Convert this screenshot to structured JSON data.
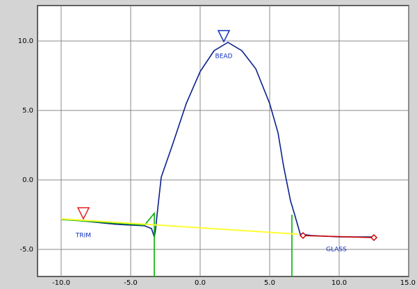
{
  "chart_data": {
    "type": "line",
    "xlim": [
      -11.7,
      15.0
    ],
    "ylim": [
      -6.95,
      12.55
    ],
    "xticks": [
      {
        "value": -10,
        "label": "-10.0"
      },
      {
        "value": -5,
        "label": "-5.0"
      },
      {
        "value": 0,
        "label": "0.0"
      },
      {
        "value": 5,
        "label": "5.0"
      },
      {
        "value": 10,
        "label": "10.0"
      },
      {
        "value": 15,
        "label": "15.0"
      }
    ],
    "yticks": [
      {
        "value": -5,
        "label": "-5.0"
      },
      {
        "value": 0,
        "label": "0.0"
      },
      {
        "value": 5,
        "label": "5.0"
      },
      {
        "value": 10,
        "label": "10.0"
      }
    ],
    "grid": true,
    "series": [
      {
        "color": "#0b1f8a",
        "x": [
          -10,
          -8,
          -6,
          -4,
          -3.5,
          -3.3,
          -3.2,
          -3.1,
          -2.8,
          -2,
          -1,
          0,
          1,
          2,
          3,
          4,
          5,
          5.6,
          6,
          6.5,
          6.8,
          7.2,
          8,
          10,
          12.5
        ],
        "values": [
          -2.8,
          -3.0,
          -3.2,
          -3.3,
          -3.5,
          -4.1,
          -3.5,
          -2.5,
          0.2,
          2.5,
          5.5,
          7.8,
          9.3,
          9.9,
          9.3,
          8.0,
          5.5,
          3.4,
          1.0,
          -1.5,
          -2.5,
          -3.9,
          -4.0,
          -4.1,
          -4.1
        ]
      },
      {
        "color": "#00b000",
        "x": [
          -10,
          -4,
          -3.3,
          -3.3,
          null,
          6.6,
          6.6
        ],
        "values": [
          -2.85,
          -3.25,
          -2.4,
          -7,
          null,
          -2.5,
          -7
        ]
      },
      {
        "color": "#ffff33",
        "x": [
          -10,
          7
        ],
        "values": [
          -2.8,
          -3.9
        ]
      },
      {
        "color": "#cc0000",
        "x": [
          7.2,
          12.5
        ],
        "values": [
          -4.0,
          -4.15
        ]
      }
    ],
    "markers": [
      {
        "shape": "triangle",
        "color": "#e02020",
        "x": -8.4,
        "y": -2.4
      },
      {
        "shape": "triangle",
        "color": "#1030c0",
        "x": 1.7,
        "y": 10.35
      },
      {
        "shape": "diamond",
        "color": "#cc0000",
        "x": 7.4,
        "y": -4.0
      },
      {
        "shape": "diamond",
        "color": "#cc0000",
        "x": 12.5,
        "y": -4.15
      }
    ],
    "annotations": [
      {
        "text": "TRIM",
        "x": -8.4,
        "y": -4.0,
        "color": "#1030c0"
      },
      {
        "text": "BEAD",
        "x": 1.7,
        "y": 8.9,
        "color": "#1030c0"
      },
      {
        "text": "GLASS",
        "x": 9.8,
        "y": -5.0,
        "color": "#1030c0"
      }
    ]
  }
}
